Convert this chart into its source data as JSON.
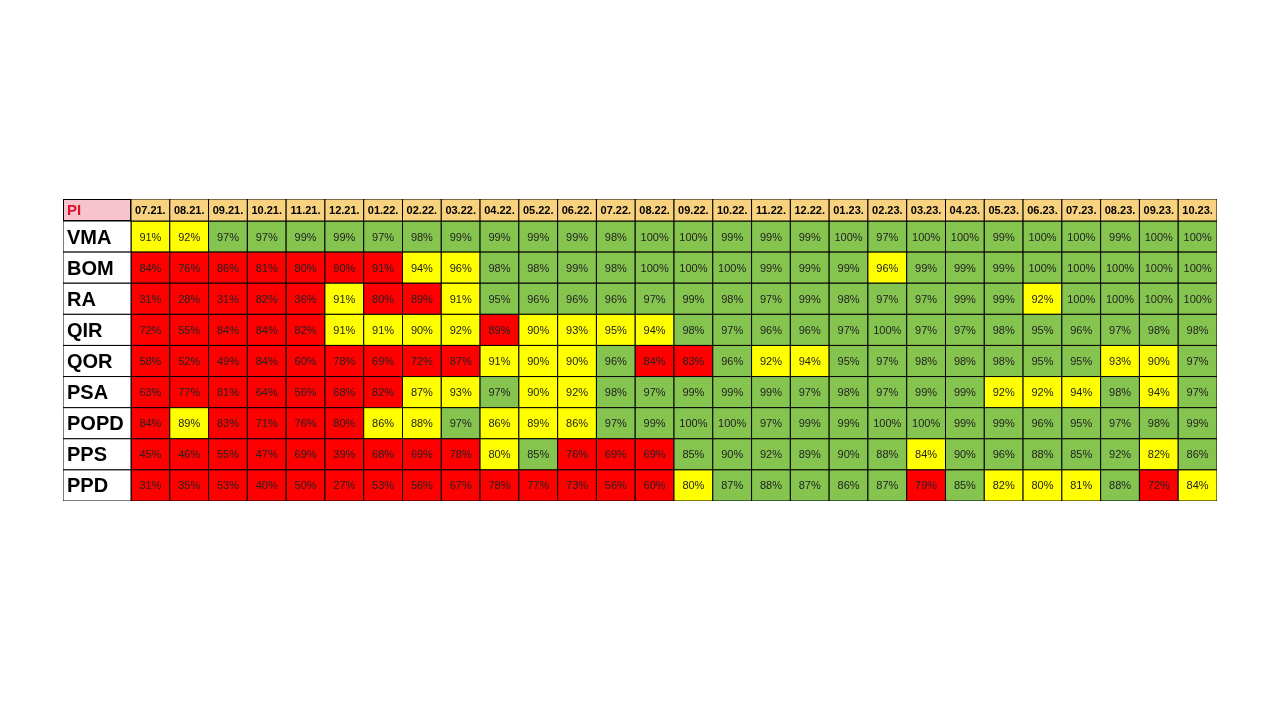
{
  "chart_data": {
    "type": "heatmap",
    "ylabel": "PI",
    "categories": [
      "07.21.",
      "08.21.",
      "09.21.",
      "10.21.",
      "11.21.",
      "12.21.",
      "01.22.",
      "02.22.",
      "03.22.",
      "04.22.",
      "05.22.",
      "06.22.",
      "07.22.",
      "08.22.",
      "09.22.",
      "10.22.",
      "11.22.",
      "12.22.",
      "01.23.",
      "02.23.",
      "03.23.",
      "04.23.",
      "05.23.",
      "06.23.",
      "07.23.",
      "08.23.",
      "09.23.",
      "10.23."
    ],
    "y_categories": [
      "VMA",
      "BOM",
      "RA",
      "QIR",
      "QOR",
      "PSA",
      "POPD",
      "PPS",
      "PPD"
    ],
    "cells": [
      [
        91,
        92,
        97,
        97,
        99,
        99,
        97,
        98,
        99,
        99,
        99,
        99,
        98,
        100,
        100,
        99,
        99,
        99,
        100,
        97,
        100,
        100,
        99,
        100,
        100,
        99,
        100,
        100
      ],
      [
        84,
        76,
        86,
        81,
        80,
        90,
        91,
        94,
        96,
        98,
        98,
        99,
        98,
        100,
        100,
        100,
        99,
        99,
        99,
        96,
        99,
        99,
        99,
        100,
        100,
        100,
        100,
        100
      ],
      [
        31,
        28,
        31,
        82,
        36,
        91,
        80,
        89,
        91,
        95,
        96,
        96,
        96,
        97,
        99,
        98,
        97,
        99,
        98,
        97,
        97,
        99,
        99,
        92,
        100,
        100,
        100,
        100
      ],
      [
        72,
        55,
        84,
        84,
        82,
        91,
        91,
        90,
        92,
        89,
        90,
        93,
        95,
        94,
        98,
        97,
        96,
        96,
        97,
        100,
        97,
        97,
        98,
        95,
        96,
        97,
        98,
        98
      ],
      [
        58,
        52,
        49,
        84,
        60,
        78,
        69,
        72,
        87,
        91,
        90,
        90,
        96,
        84,
        83,
        96,
        92,
        94,
        95,
        97,
        98,
        98,
        98,
        95,
        95,
        93,
        90,
        97
      ],
      [
        63,
        77,
        81,
        64,
        56,
        68,
        82,
        87,
        93,
        97,
        90,
        92,
        98,
        97,
        99,
        99,
        99,
        97,
        98,
        97,
        99,
        99,
        92,
        92,
        94,
        98,
        94,
        97
      ],
      [
        84,
        89,
        83,
        71,
        76,
        80,
        86,
        88,
        97,
        86,
        89,
        86,
        97,
        99,
        100,
        100,
        97,
        99,
        99,
        100,
        100,
        99,
        99,
        96,
        95,
        97,
        98,
        99
      ],
      [
        45,
        46,
        55,
        47,
        69,
        39,
        68,
        69,
        78,
        80,
        85,
        76,
        69,
        69,
        85,
        90,
        92,
        89,
        90,
        88,
        84,
        90,
        96,
        88,
        85,
        92,
        82,
        86
      ],
      [
        31,
        35,
        53,
        40,
        50,
        27,
        53,
        56,
        67,
        78,
        77,
        73,
        56,
        60,
        80,
        87,
        88,
        87,
        86,
        87,
        79,
        85,
        82,
        80,
        81,
        88,
        72,
        84
      ]
    ],
    "cell_labels": [
      [
        "91%",
        "92%",
        "97%",
        "97%",
        "99%",
        "99%",
        "97%",
        "98%",
        "99%",
        "99%",
        "99%",
        "99%",
        "98%",
        "100%",
        "100%",
        "99%",
        "99%",
        "99%",
        "100%",
        "97%",
        "100%",
        "100%",
        "99%",
        "100%",
        "100%",
        "99%",
        "100%",
        "100%"
      ],
      [
        "84%",
        "76%",
        "86%",
        "81%",
        "80%",
        "90%",
        "91%",
        "94%",
        "96%",
        "98%",
        "98%",
        "99%",
        "98%",
        "100%",
        "100%",
        "100%",
        "99%",
        "99%",
        "99%",
        "96%",
        "99%",
        "99%",
        "99%",
        "100%",
        "100%",
        "100%",
        "100%",
        "100%"
      ],
      [
        "31%",
        "28%",
        "31%",
        "82%",
        "36%",
        "91%",
        "80%",
        "89%",
        "91%",
        "95%",
        "96%",
        "96%",
        "96%",
        "97%",
        "99%",
        "98%",
        "97%",
        "99%",
        "98%",
        "97%",
        "97%",
        "99%",
        "99%",
        "92%",
        "100%",
        "100%",
        "100%",
        "100%"
      ],
      [
        "72%",
        "55%",
        "84%",
        "84%",
        "82%",
        "91%",
        "91%",
        "90%",
        "92%",
        "89%",
        "90%",
        "93%",
        "95%",
        "94%",
        "98%",
        "97%",
        "96%",
        "96%",
        "97%",
        "100%",
        "97%",
        "97%",
        "98%",
        "95%",
        "96%",
        "97%",
        "98%",
        "98%"
      ],
      [
        "58%",
        "52%",
        "49%",
        "84%",
        "60%",
        "78%",
        "69%",
        "72%",
        "87%",
        "91%",
        "90%",
        "90%",
        "96%",
        "84%",
        "83%",
        "96%",
        "92%",
        "94%",
        "95%",
        "97%",
        "98%",
        "98%",
        "98%",
        "95%",
        "95%",
        "93%",
        "90%",
        "97%"
      ],
      [
        "63%",
        "77%",
        "81%",
        "64%",
        "56%",
        "68%",
        "82%",
        "87%",
        "93%",
        "97%",
        "90%",
        "92%",
        "98%",
        "97%",
        "99%",
        "99%",
        "99%",
        "97%",
        "98%",
        "97%",
        "99%",
        "99%",
        "92%",
        "92%",
        "94%",
        "98%",
        "94%",
        "97%"
      ],
      [
        "84%",
        "89%",
        "83%",
        "71%",
        "76%",
        "80%",
        "86%",
        "88%",
        "97%",
        "86%",
        "89%",
        "86%",
        "97%",
        "99%",
        "100%",
        "100%",
        "97%",
        "99%",
        "99%",
        "100%",
        "100%",
        "99%",
        "99%",
        "96%",
        "95%",
        "97%",
        "98%",
        "99%"
      ],
      [
        "45%",
        "46%",
        "55%",
        "47%",
        "69%",
        "39%",
        "68%",
        "69%",
        "78%",
        "80%",
        "85%",
        "76%",
        "69%",
        "69%",
        "85%",
        "90%",
        "92%",
        "89%",
        "90%",
        "88%",
        "84%",
        "90%",
        "96%",
        "88%",
        "85%",
        "92%",
        "82%",
        "86%"
      ],
      [
        "31%",
        "35%",
        "53%",
        "40%",
        "50%",
        "27%",
        "53%",
        "56%",
        "67%",
        "78%",
        "77%",
        "73%",
        "56%",
        "60%",
        "80%",
        "87%",
        "88%",
        "87%",
        "86%",
        "87%",
        "79%",
        "85%",
        "82%",
        "80%",
        "81%",
        "88%",
        "72%",
        "84%"
      ]
    ],
    "colors": [
      [
        "#ffff00",
        "#ffff00",
        "#86c450",
        "#86c450",
        "#86c450",
        "#86c450",
        "#86c450",
        "#86c450",
        "#86c450",
        "#86c450",
        "#86c450",
        "#86c450",
        "#86c450",
        "#86c450",
        "#86c450",
        "#86c450",
        "#86c450",
        "#86c450",
        "#86c450",
        "#86c450",
        "#86c450",
        "#86c450",
        "#86c450",
        "#86c450",
        "#86c450",
        "#86c450",
        "#86c450",
        "#86c450"
      ],
      [
        "#ff0000",
        "#ff0000",
        "#ff0000",
        "#ff0000",
        "#ff0000",
        "#ff0000",
        "#ff0000",
        "#ffff00",
        "#ffff00",
        "#86c450",
        "#86c450",
        "#86c450",
        "#86c450",
        "#86c450",
        "#86c450",
        "#86c450",
        "#86c450",
        "#86c450",
        "#86c450",
        "#ffff00",
        "#86c450",
        "#86c450",
        "#86c450",
        "#86c450",
        "#86c450",
        "#86c450",
        "#86c450",
        "#86c450"
      ],
      [
        "#ff0000",
        "#ff0000",
        "#ff0000",
        "#ff0000",
        "#ff0000",
        "#ffff00",
        "#ff0000",
        "#ff0000",
        "#ffff00",
        "#86c450",
        "#86c450",
        "#86c450",
        "#86c450",
        "#86c450",
        "#86c450",
        "#86c450",
        "#86c450",
        "#86c450",
        "#86c450",
        "#86c450",
        "#86c450",
        "#86c450",
        "#86c450",
        "#ffff00",
        "#86c450",
        "#86c450",
        "#86c450",
        "#86c450"
      ],
      [
        "#ff0000",
        "#ff0000",
        "#ff0000",
        "#ff0000",
        "#ff0000",
        "#ffff00",
        "#ffff00",
        "#ffff00",
        "#ffff00",
        "#ff0000",
        "#ffff00",
        "#ffff00",
        "#ffff00",
        "#ffff00",
        "#86c450",
        "#86c450",
        "#86c450",
        "#86c450",
        "#86c450",
        "#86c450",
        "#86c450",
        "#86c450",
        "#86c450",
        "#86c450",
        "#86c450",
        "#86c450",
        "#86c450",
        "#86c450"
      ],
      [
        "#ff0000",
        "#ff0000",
        "#ff0000",
        "#ff0000",
        "#ff0000",
        "#ff0000",
        "#ff0000",
        "#ff0000",
        "#ff0000",
        "#ffff00",
        "#ffff00",
        "#ffff00",
        "#86c450",
        "#ff0000",
        "#ff0000",
        "#86c450",
        "#ffff00",
        "#ffff00",
        "#86c450",
        "#86c450",
        "#86c450",
        "#86c450",
        "#86c450",
        "#86c450",
        "#86c450",
        "#ffff00",
        "#ffff00",
        "#86c450"
      ],
      [
        "#ff0000",
        "#ff0000",
        "#ff0000",
        "#ff0000",
        "#ff0000",
        "#ff0000",
        "#ff0000",
        "#ffff00",
        "#ffff00",
        "#86c450",
        "#ffff00",
        "#ffff00",
        "#86c450",
        "#86c450",
        "#86c450",
        "#86c450",
        "#86c450",
        "#86c450",
        "#86c450",
        "#86c450",
        "#86c450",
        "#86c450",
        "#ffff00",
        "#ffff00",
        "#ffff00",
        "#86c450",
        "#ffff00",
        "#86c450"
      ],
      [
        "#ff0000",
        "#ffff00",
        "#ff0000",
        "#ff0000",
        "#ff0000",
        "#ff0000",
        "#ffff00",
        "#ffff00",
        "#86c450",
        "#ffff00",
        "#ffff00",
        "#ffff00",
        "#86c450",
        "#86c450",
        "#86c450",
        "#86c450",
        "#86c450",
        "#86c450",
        "#86c450",
        "#86c450",
        "#86c450",
        "#86c450",
        "#86c450",
        "#86c450",
        "#86c450",
        "#86c450",
        "#86c450",
        "#86c450"
      ],
      [
        "#ff0000",
        "#ff0000",
        "#ff0000",
        "#ff0000",
        "#ff0000",
        "#ff0000",
        "#ff0000",
        "#ff0000",
        "#ff0000",
        "#ffff00",
        "#86c450",
        "#ff0000",
        "#ff0000",
        "#ff0000",
        "#86c450",
        "#86c450",
        "#86c450",
        "#86c450",
        "#86c450",
        "#86c450",
        "#ffff00",
        "#86c450",
        "#86c450",
        "#86c450",
        "#86c450",
        "#86c450",
        "#ffff00",
        "#86c450"
      ],
      [
        "#ff0000",
        "#ff0000",
        "#ff0000",
        "#ff0000",
        "#ff0000",
        "#ff0000",
        "#ff0000",
        "#ff0000",
        "#ff0000",
        "#ff0000",
        "#ff0000",
        "#ff0000",
        "#ff0000",
        "#ff0000",
        "#ffff00",
        "#86c450",
        "#86c450",
        "#86c450",
        "#86c450",
        "#86c450",
        "#ff0000",
        "#86c450",
        "#ffff00",
        "#ffff00",
        "#ffff00",
        "#86c450",
        "#ff0000",
        "#ffff00"
      ]
    ]
  }
}
